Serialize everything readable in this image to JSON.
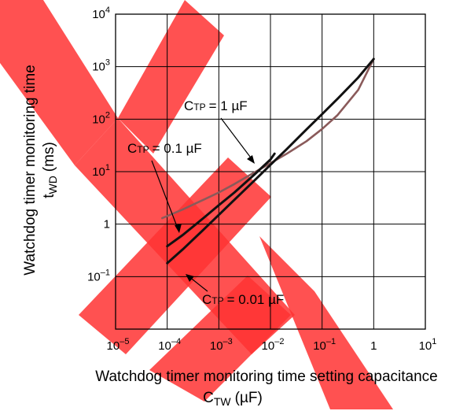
{
  "chart_data": {
    "type": "line",
    "title": "",
    "xlabel": "Watchdog timer monitoring time setting capacitance",
    "xlabel_symbol": "C",
    "xlabel_symbol_sub": "TW",
    "xlabel_unit": "(µF)",
    "ylabel": "Watchdog timer monitoring time",
    "ylabel_symbol": "t",
    "ylabel_symbol_sub": "WD",
    "ylabel_unit": "(ms)",
    "x_scale": "log",
    "y_scale": "log",
    "xlim": [
      1e-05,
      10
    ],
    "ylim": [
      0.01,
      10000
    ],
    "grid": true,
    "x_ticks": [
      {
        "value": 1e-05,
        "base": "10",
        "exp": "–5"
      },
      {
        "value": 0.0001,
        "base": "10",
        "exp": "–4"
      },
      {
        "value": 0.001,
        "base": "10",
        "exp": "–3"
      },
      {
        "value": 0.01,
        "base": "10",
        "exp": "–2"
      },
      {
        "value": 0.1,
        "base": "10",
        "exp": "–1"
      },
      {
        "value": 1,
        "base": "1",
        "exp": ""
      },
      {
        "value": 10,
        "base": "10",
        "exp": "1"
      }
    ],
    "y_ticks": [
      {
        "value": 0.1,
        "base": "10",
        "exp": "–1"
      },
      {
        "value": 1,
        "base": "1",
        "exp": ""
      },
      {
        "value": 10,
        "base": "10",
        "exp": "1"
      },
      {
        "value": 100,
        "base": "10",
        "exp": "2"
      },
      {
        "value": 1000,
        "base": "10",
        "exp": "3"
      },
      {
        "value": 10000,
        "base": "10",
        "exp": "4"
      }
    ],
    "series": [
      {
        "name": "CTP = 1 µF",
        "label_symbol": "C",
        "label_sub": "TP",
        "label_value": "= 1 µF",
        "color": "#8a5a5a",
        "x": [
          8e-05,
          0.0002,
          0.0005,
          0.001,
          0.002,
          0.005,
          0.01,
          0.02,
          0.05,
          0.1,
          0.2,
          0.5,
          1
        ],
        "y": [
          1.3,
          1.9,
          2.9,
          4.0,
          5.8,
          9.8,
          14.5,
          21.5,
          38,
          65,
          120,
          360,
          1400
        ]
      },
      {
        "name": "CTP = 0.1 µF",
        "label_symbol": "C",
        "label_sub": "TP",
        "label_value": "= 0.1 µF",
        "color": "#111111",
        "x": [
          0.0001,
          0.0002,
          0.0005,
          0.001,
          0.002,
          0.005,
          0.01,
          0.012
        ],
        "y": [
          0.38,
          0.62,
          1.3,
          2.3,
          4.0,
          9.0,
          17,
          22
        ]
      },
      {
        "name": "CTP = 0.01 µF",
        "label_symbol": "C",
        "label_sub": "TP",
        "label_value": "= 0.01 µF",
        "color": "#111111",
        "x": [
          0.0001,
          0.0002,
          0.0005,
          0.001,
          0.002,
          0.005,
          0.01,
          0.02,
          0.05,
          0.1,
          0.2,
          0.5,
          1
        ],
        "y": [
          0.18,
          0.33,
          0.78,
          1.5,
          2.9,
          6.9,
          13.5,
          26,
          64,
          125,
          245,
          620,
          1400
        ]
      }
    ]
  }
}
